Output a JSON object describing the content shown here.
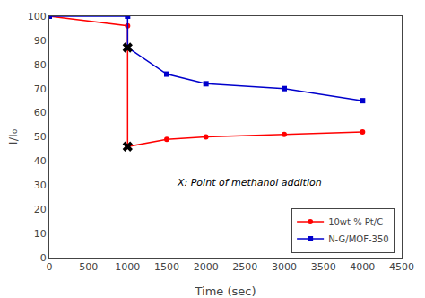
{
  "chart_data": {
    "type": "line",
    "x": [
      0,
      1000,
      1000,
      1500,
      2000,
      3000,
      4000
    ],
    "series": [
      {
        "name": "10wt % Pt/C",
        "color": "#ff0000",
        "marker": "circle",
        "values": [
          100,
          96,
          46,
          49,
          50,
          51,
          52
        ]
      },
      {
        "name": "N-G/MOF-350",
        "color": "#0000cc",
        "marker": "square",
        "values": [
          100,
          100,
          87,
          76,
          72,
          70,
          65
        ]
      },
      {
        "type": "scatter",
        "marker": "x",
        "color": "#000000",
        "x": [
          1000,
          1000
        ],
        "values": [
          87,
          46
        ]
      }
    ],
    "xlabel": "Time (sec)",
    "ylabel": "I/I₀",
    "xlim": [
      0,
      4500
    ],
    "ylim": [
      0,
      100
    ],
    "xticks": [
      0,
      500,
      1000,
      1500,
      2000,
      2500,
      3000,
      3500,
      4000,
      4500
    ],
    "yticks": [
      0,
      10,
      20,
      30,
      40,
      50,
      60,
      70,
      80,
      90,
      100
    ],
    "annotations": [
      {
        "text": "X: Point of methanol addition",
        "x": 1600,
        "y": 28
      }
    ],
    "grid": false,
    "legend": "lower right"
  }
}
